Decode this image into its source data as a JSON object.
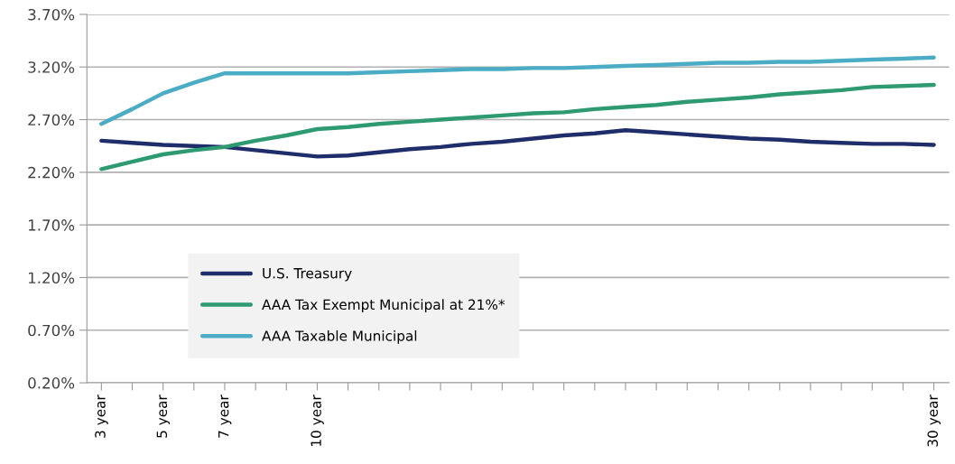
{
  "chart_data": {
    "type": "line",
    "categories": [
      "3 year",
      null,
      "5 year",
      null,
      "7 year",
      null,
      null,
      "10 year",
      null,
      null,
      null,
      null,
      null,
      null,
      null,
      null,
      null,
      null,
      null,
      null,
      null,
      null,
      null,
      null,
      null,
      null,
      null,
      "30 year"
    ],
    "series": [
      {
        "name": "U.S. Treasury",
        "color": "#1f2d6b",
        "values": [
          2.5,
          2.48,
          2.46,
          2.45,
          2.44,
          2.41,
          2.38,
          2.35,
          2.36,
          2.39,
          2.42,
          2.44,
          2.47,
          2.49,
          2.52,
          2.55,
          2.57,
          2.6,
          2.58,
          2.56,
          2.54,
          2.52,
          2.51,
          2.49,
          2.48,
          2.47,
          2.47,
          2.46
        ]
      },
      {
        "name": "AAA Tax Exempt Municipal at 21%*",
        "color": "#2e9a72",
        "values": [
          2.23,
          2.3,
          2.37,
          2.41,
          2.44,
          2.5,
          2.55,
          2.61,
          2.63,
          2.66,
          2.68,
          2.7,
          2.72,
          2.74,
          2.76,
          2.77,
          2.8,
          2.82,
          2.84,
          2.87,
          2.89,
          2.91,
          2.94,
          2.96,
          2.98,
          3.01,
          3.02,
          3.03
        ]
      },
      {
        "name": "AAA Taxable Municipal",
        "color": "#4bacc6",
        "values": [
          2.66,
          2.8,
          2.95,
          3.05,
          3.14,
          3.14,
          3.14,
          3.14,
          3.14,
          3.15,
          3.16,
          3.17,
          3.18,
          3.18,
          3.19,
          3.19,
          3.2,
          3.21,
          3.22,
          3.23,
          3.24,
          3.24,
          3.25,
          3.25,
          3.26,
          3.27,
          3.28,
          3.29
        ]
      }
    ],
    "ylim": [
      0.2,
      3.7
    ],
    "yticks": [
      {
        "value": 0.2,
        "label": "0.20%"
      },
      {
        "value": 0.7,
        "label": "0.70%"
      },
      {
        "value": 1.2,
        "label": "1.20%"
      },
      {
        "value": 1.7,
        "label": "1.70%"
      },
      {
        "value": 2.2,
        "label": "2.20%"
      },
      {
        "value": 2.7,
        "label": "2.70%"
      },
      {
        "value": 3.2,
        "label": "3.20%"
      },
      {
        "value": 3.7,
        "label": "3.70%"
      }
    ],
    "grid": "y",
    "legend": "bottom left",
    "marker": "none",
    "line_style": "solid"
  }
}
